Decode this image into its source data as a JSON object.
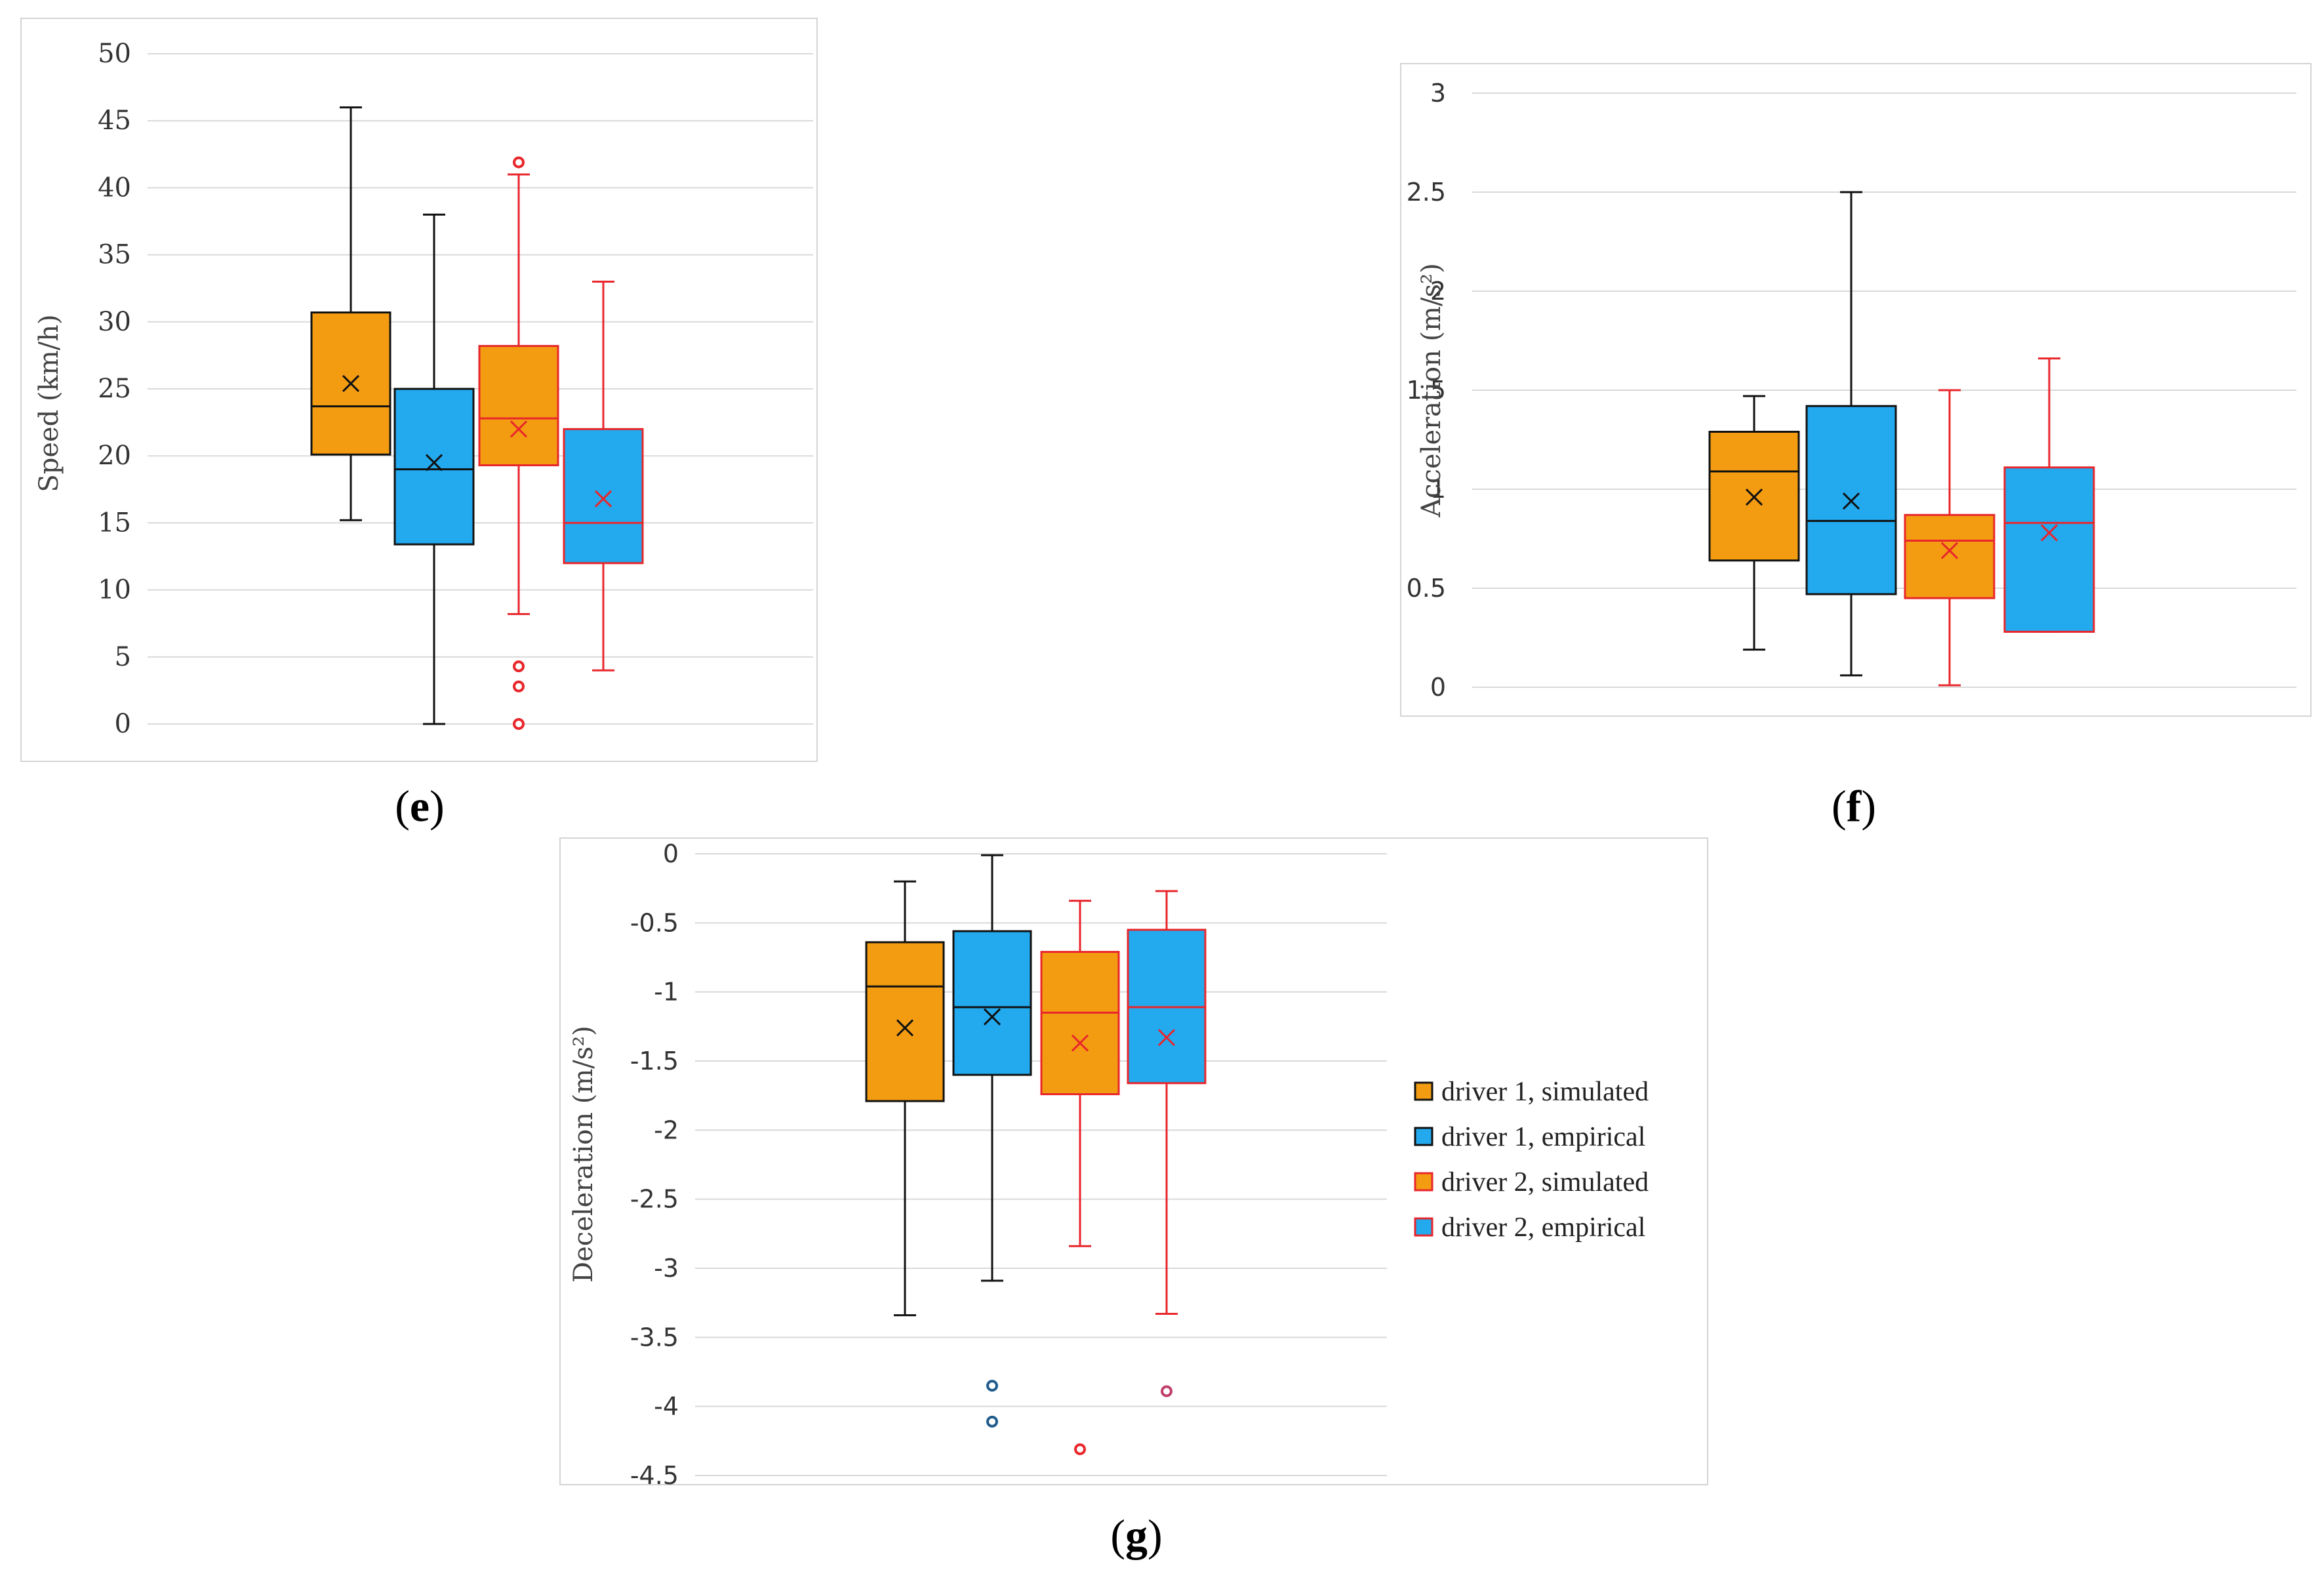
{
  "legend": [
    {
      "label": "driver 1, simulated",
      "fill": "#F39C12",
      "stroke": "#111111"
    },
    {
      "label": "driver 1, empirical",
      "fill": "#23A9EE",
      "stroke": "#111111"
    },
    {
      "label": "driver 2, simulated",
      "fill": "#F39C12",
      "stroke": "#E8262B"
    },
    {
      "label": "driver 2, empirical",
      "fill": "#23A9EE",
      "stroke": "#E8262B"
    }
  ],
  "chart_data": [
    {
      "type": "box",
      "id": "e",
      "panel_label": "e",
      "ylabel": "Speed (km/h)",
      "ylim": [
        0,
        50
      ],
      "yticks": [
        0,
        5,
        10,
        15,
        20,
        25,
        30,
        35,
        40,
        45,
        50
      ],
      "series": [
        {
          "name": "driver 1, simulated",
          "min": 15.2,
          "q1": 20.1,
          "median": 23.7,
          "q3": 30.7,
          "max": 46,
          "mean": 25.4,
          "outliers": []
        },
        {
          "name": "driver 1, empirical",
          "min": 0,
          "q1": 13.4,
          "median": 19,
          "q3": 25,
          "max": 38,
          "mean": 19.5,
          "outliers": []
        },
        {
          "name": "driver 2, simulated",
          "min": 8.2,
          "q1": 19.3,
          "median": 22.8,
          "q3": 28.2,
          "max": 41,
          "mean": 22,
          "outliers": [
            41.9,
            4.3,
            2.8,
            0
          ]
        },
        {
          "name": "driver 2, empirical",
          "min": 4,
          "q1": 12,
          "median": 15,
          "q3": 22,
          "max": 33,
          "mean": 16.8,
          "outliers": []
        }
      ]
    },
    {
      "type": "box",
      "id": "f",
      "panel_label": "f",
      "ylabel": "Acceleration (m/s²)",
      "ylim": [
        0,
        3
      ],
      "yticks": [
        0,
        0.5,
        1,
        1.5,
        2,
        2.5,
        3
      ],
      "series": [
        {
          "name": "driver 1, simulated",
          "min": 0.19,
          "q1": 0.64,
          "median": 1.09,
          "q3": 1.29,
          "max": 1.47,
          "mean": 0.96,
          "outliers": []
        },
        {
          "name": "driver 1, empirical",
          "min": 0.06,
          "q1": 0.47,
          "median": 0.84,
          "q3": 1.42,
          "max": 2.5,
          "mean": 0.94,
          "outliers": []
        },
        {
          "name": "driver 2, simulated",
          "min": 0.01,
          "q1": 0.45,
          "median": 0.74,
          "q3": 0.87,
          "max": 1.5,
          "mean": 0.69,
          "outliers": []
        },
        {
          "name": "driver 2, empirical",
          "min": 0.28,
          "q1": 0.28,
          "median": 0.83,
          "q3": 1.11,
          "max": 1.66,
          "mean": 0.78,
          "outliers": []
        }
      ]
    },
    {
      "type": "box",
      "id": "g",
      "panel_label": "g",
      "ylabel": "Deceleration (m/s²)",
      "ylim": [
        -4.5,
        0
      ],
      "yticks": [
        0,
        -0.5,
        -1,
        -1.5,
        -2,
        -2.5,
        -3,
        -3.5,
        -4,
        -4.5
      ],
      "series": [
        {
          "name": "driver 1, simulated",
          "min": -3.34,
          "q1": -1.79,
          "median": -0.96,
          "q3": -0.64,
          "max": -0.2,
          "mean": -1.26,
          "outliers": []
        },
        {
          "name": "driver 1, empirical",
          "min": -3.09,
          "q1": -1.6,
          "median": -1.11,
          "q3": -0.56,
          "max": -0.01,
          "mean": -1.18,
          "outliers": [
            -3.85,
            -4.11
          ]
        },
        {
          "name": "driver 2, simulated",
          "min": -2.84,
          "q1": -1.74,
          "median": -1.15,
          "q3": -0.71,
          "max": -0.34,
          "mean": -1.37,
          "outliers": [
            -4.31
          ]
        },
        {
          "name": "driver 2, empirical",
          "min": -3.33,
          "q1": -1.66,
          "median": -1.11,
          "q3": -0.55,
          "max": -0.27,
          "mean": -1.33,
          "outliers": [
            -3.89
          ]
        }
      ]
    }
  ]
}
